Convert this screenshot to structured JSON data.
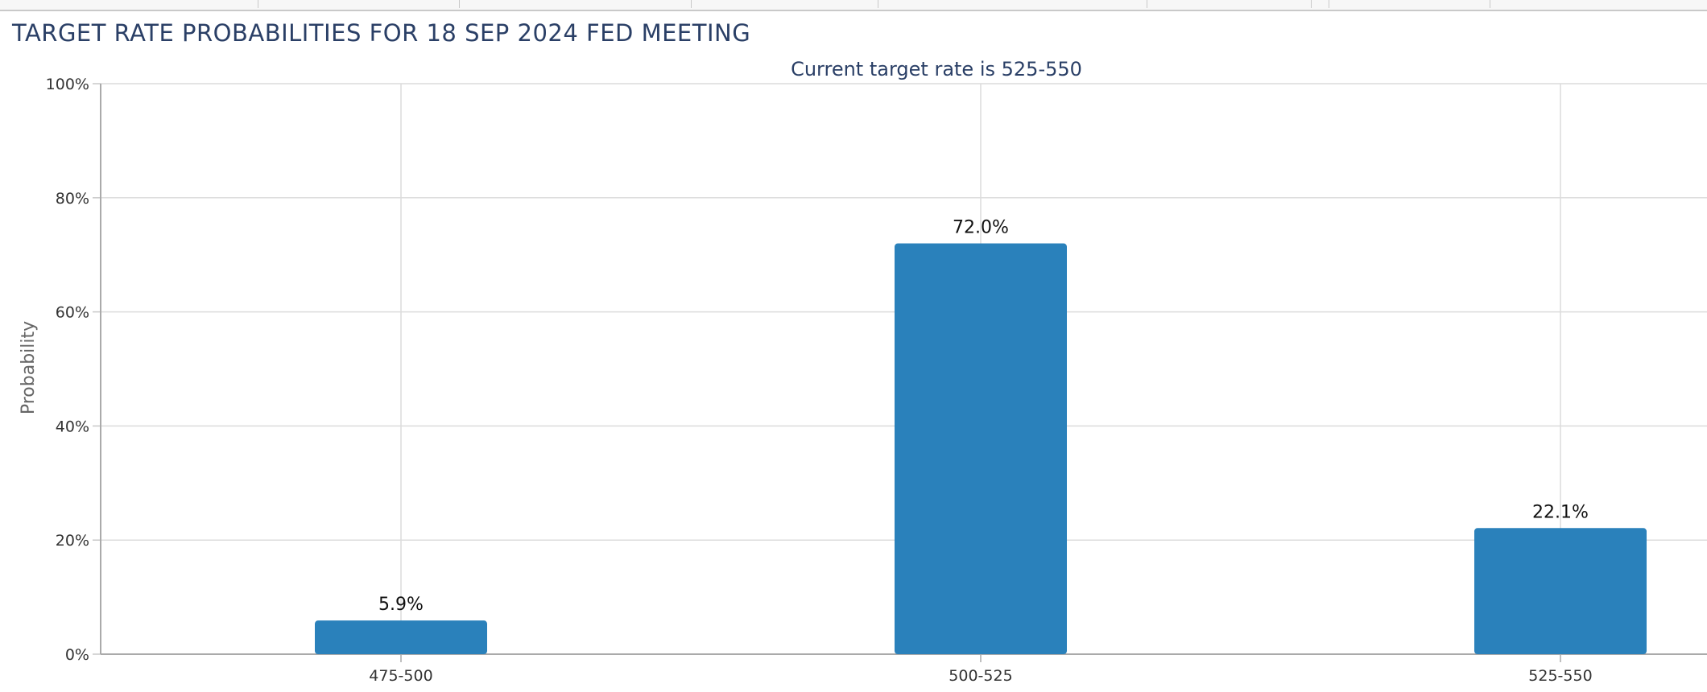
{
  "title": "TARGET RATE PROBABILITIES FOR 18 SEP 2024 FED MEETING",
  "chart_data": {
    "type": "bar",
    "title": "TARGET RATE PROBABILITIES FOR 18 SEP 2024 FED MEETING",
    "subtitle": "Current target rate is 525-550",
    "xlabel": "",
    "ylabel": "Probability",
    "categories": [
      "475-500",
      "500-525",
      "525-550"
    ],
    "values": [
      5.9,
      72.0,
      22.1
    ],
    "data_labels": [
      "5.9%",
      "72.0%",
      "22.1%"
    ],
    "ylim": [
      0,
      100
    ],
    "yticks": [
      0,
      20,
      40,
      60,
      80,
      100
    ],
    "ytick_labels": [
      "0%",
      "20%",
      "40%",
      "60%",
      "80%",
      "100%"
    ],
    "grid": true,
    "legend": "none",
    "bar_color": "#2a81bb"
  }
}
